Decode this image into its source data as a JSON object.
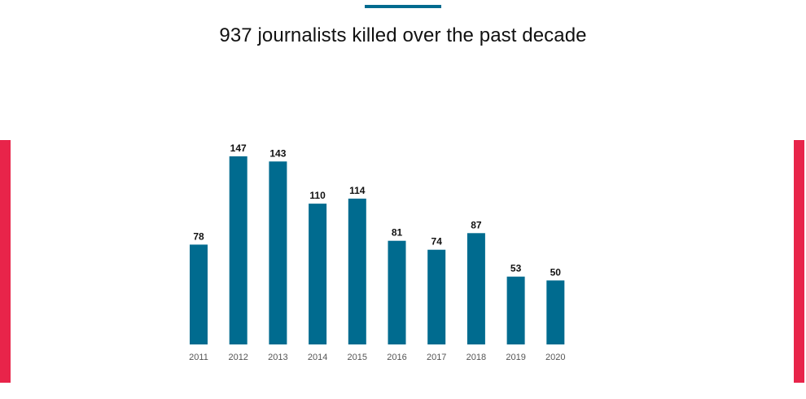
{
  "header": {
    "title": "937 journalists killed over the past decade"
  },
  "colors": {
    "bar": "#006b8f",
    "accent_rule": "#006b8f",
    "side_bars": "#e8244a"
  },
  "chart_data": {
    "type": "bar",
    "title": "937 journalists killed over the past decade",
    "xlabel": "",
    "ylabel": "",
    "categories": [
      "2011",
      "2012",
      "2013",
      "2014",
      "2015",
      "2016",
      "2017",
      "2018",
      "2019",
      "2020"
    ],
    "values": [
      78,
      147,
      143,
      110,
      114,
      81,
      74,
      87,
      53,
      50
    ],
    "data_labels": true,
    "grid": false,
    "legend": "none",
    "ylim": [
      0,
      150
    ]
  }
}
